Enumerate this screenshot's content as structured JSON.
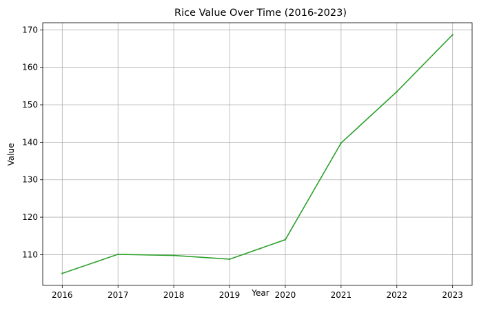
{
  "chart_data": {
    "type": "line",
    "title": "Rice Value Over Time (2016-2023)",
    "xlabel": "Year",
    "ylabel": "Value",
    "x": [
      2016,
      2017,
      2018,
      2019,
      2020,
      2021,
      2022,
      2023
    ],
    "series": [
      {
        "values": [
          105.0,
          110.1,
          109.8,
          108.8,
          114.0,
          139.8,
          153.5,
          168.7
        ],
        "color": "#2ca02c"
      }
    ],
    "xlim": [
      2015.65,
      2023.35
    ],
    "ylim": [
      101.8,
      171.9
    ],
    "xticks": [
      "2016",
      "2017",
      "2018",
      "2019",
      "2020",
      "2021",
      "2022",
      "2023"
    ],
    "yticks": [
      "110",
      "120",
      "130",
      "140",
      "150",
      "160",
      "170"
    ],
    "grid": true,
    "legend": "none"
  }
}
